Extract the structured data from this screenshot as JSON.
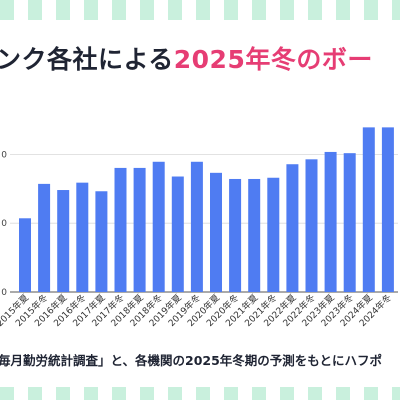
{
  "title": {
    "prefix": "ンク各社による",
    "highlight": "2025年冬のボー"
  },
  "caption": "毎月勤労統計調査」と、各機関の2025年冬期の予測をもとにハフポ",
  "colors": {
    "bar": "#4f7cf2",
    "title_highlight": "#e63d74",
    "stripe": "#c9f0dd"
  },
  "chart_data": {
    "type": "bar",
    "categories": [
      "2015年夏",
      "2015年冬",
      "2016年夏",
      "2016年冬",
      "2017年夏",
      "2017年冬",
      "2018年夏",
      "2018年冬",
      "2019年夏",
      "2019年冬",
      "2020年夏",
      "2020年冬",
      "2021年夏",
      "2021年冬",
      "2022年夏",
      "2022年冬",
      "2023年夏",
      "2023年冬",
      "2024年夏",
      "2024年冬"
    ],
    "values": [
      36.0,
      38.8,
      38.3,
      38.9,
      38.2,
      40.1,
      40.1,
      40.6,
      39.4,
      40.6,
      39.7,
      39.2,
      39.2,
      39.3,
      40.4,
      40.8,
      41.4,
      41.3,
      43.4,
      43.4
    ],
    "ytick_labels": [
      "0",
      "0",
      "0"
    ],
    "ylim": [
      30,
      44
    ],
    "xlabel": "",
    "ylabel": "",
    "grid": true
  }
}
